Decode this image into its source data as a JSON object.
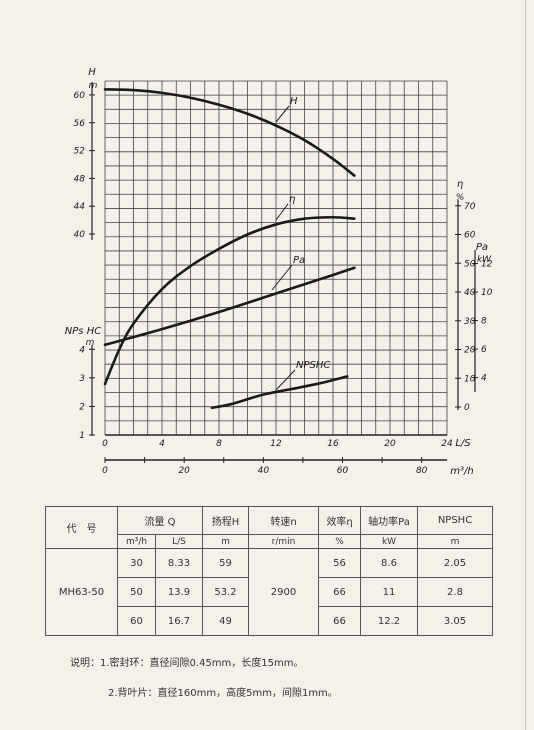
{
  "chart_data": {
    "type": "line",
    "xlabel": "L/S",
    "x_unit_secondary": "m³/h",
    "x_ticks": [
      "0",
      "4",
      "8",
      "12",
      "16",
      "20",
      "24"
    ],
    "x2_ticks": [
      "0",
      "20",
      "40",
      "60",
      "80"
    ],
    "x_range": [
      0,
      24
    ],
    "x2_range": [
      0,
      86.4
    ],
    "left_upper_axis": {
      "label": "H",
      "unit": "m",
      "ticks": [
        "40",
        "44",
        "48",
        "52",
        "56",
        "60"
      ],
      "range": [
        39,
        61
      ]
    },
    "left_lower_axis": {
      "label": "NPs HC",
      "unit": "m",
      "ticks": [
        "1",
        "2",
        "3",
        "4"
      ],
      "range": [
        1,
        4.5
      ]
    },
    "right_eff_axis": {
      "label": "η",
      "unit": "%",
      "ticks": [
        "0",
        "10",
        "20",
        "30",
        "40",
        "50",
        "60",
        "70"
      ],
      "range": [
        0,
        72
      ]
    },
    "right_power_axis": {
      "label": "Pa",
      "unit": "kW",
      "ticks": [
        "4",
        "6",
        "8",
        "10",
        "12"
      ],
      "range": [
        3.2,
        12.6
      ]
    },
    "grid": true,
    "series": [
      {
        "name": "H",
        "axis": "left_upper",
        "x": [
          0,
          2,
          4,
          6,
          8,
          10,
          12,
          14,
          16,
          17.5
        ],
        "y": [
          60.8,
          60.7,
          60.3,
          59.6,
          58.6,
          57.3,
          55.6,
          53.5,
          50.8,
          48.4
        ]
      },
      {
        "name": "η",
        "axis": "right_eff",
        "x": [
          0,
          1,
          2,
          4,
          6,
          8,
          10,
          12,
          14,
          16,
          17.5
        ],
        "y": [
          8,
          20,
          29,
          41,
          49,
          55,
          60,
          63.5,
          65.5,
          66,
          65.5
        ]
      },
      {
        "name": "Pa",
        "axis": "right_power",
        "x": [
          0,
          4,
          8,
          12,
          16,
          17.5
        ],
        "y": [
          6.3,
          7.4,
          8.6,
          9.9,
          11.2,
          11.7
        ]
      },
      {
        "name": "NPSHC",
        "axis": "left_lower",
        "x": [
          7.5,
          9,
          11,
          13,
          15,
          17
        ],
        "y": [
          1.95,
          2.1,
          2.4,
          2.6,
          2.8,
          3.05
        ]
      }
    ]
  },
  "table": {
    "hdr_code": "代　号",
    "hdr_flow": "流量 Q",
    "hdr_head": "扬程H",
    "hdr_speed": "转速n",
    "hdr_eff": "效率η",
    "hdr_power": "轴功率Pa",
    "hdr_npshc": "NPSHC",
    "unit_m3h": "m³/h",
    "unit_ls": "L/S",
    "unit_head": "m",
    "unit_speed": "r/min",
    "unit_eff": "%",
    "unit_power": "kW",
    "unit_npshc": "m",
    "model": "MH63-50",
    "speed": "2900",
    "rows": [
      {
        "m3h": "30",
        "ls": "8.33",
        "head": "59",
        "eff": "56",
        "power": "8.6",
        "npshc": "2.05"
      },
      {
        "m3h": "50",
        "ls": "13.9",
        "head": "53.2",
        "eff": "66",
        "power": "11",
        "npshc": "2.8"
      },
      {
        "m3h": "60",
        "ls": "16.7",
        "head": "49",
        "eff": "66",
        "power": "12.2",
        "npshc": "3.05"
      }
    ]
  },
  "notes": {
    "line1": "说明：1.密封环：直径间隙0.45mm，长度15mm。",
    "line2": "2.背叶片：直径160mm，高度5mm，间隙1mm。"
  }
}
